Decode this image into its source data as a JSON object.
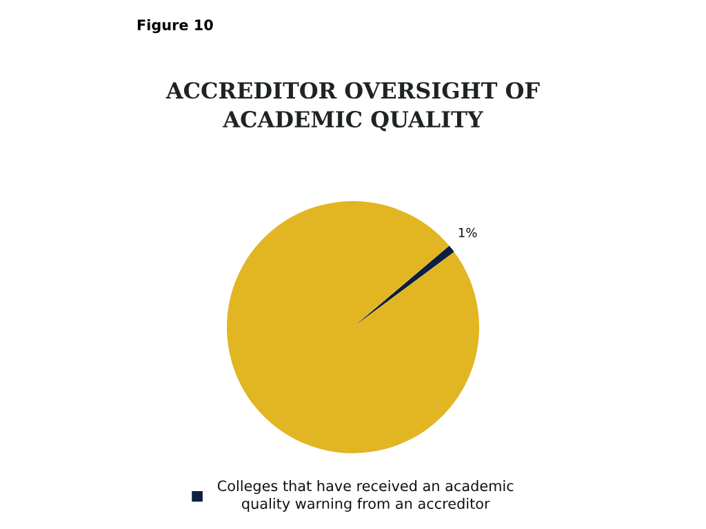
{
  "chart_data": {
    "type": "pie",
    "title": "ACCREDITOR OVERSIGHT OF ACADEMIC QUALITY",
    "annotations": [
      "Figure 10"
    ],
    "categories": [
      "Colleges that have received an academic quality warning from an accreditor",
      null
    ],
    "values": [
      1,
      99
    ],
    "colors": [
      "#0c1f40",
      "#e2b623"
    ],
    "value_labels": [
      "1%",
      null
    ],
    "legend": "bottom"
  }
}
